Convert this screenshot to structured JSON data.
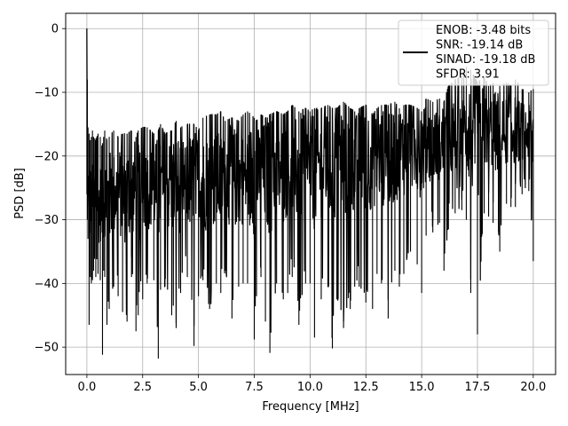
{
  "chart_data": {
    "type": "line",
    "title": "",
    "xlabel": "Frequency [MHz]",
    "ylabel": "PSD [dB]",
    "xlim": [
      -0.95,
      21.0
    ],
    "ylim": [
      -54.3,
      2.4
    ],
    "grid": true,
    "legend_position": "top-right",
    "xticks": [
      0.0,
      2.5,
      5.0,
      7.5,
      10.0,
      12.5,
      15.0,
      17.5,
      20.0
    ],
    "xtick_labels": [
      "0.0",
      "2.5",
      "5.0",
      "7.5",
      "10.0",
      "12.5",
      "15.0",
      "17.5",
      "20.0"
    ],
    "yticks": [
      0,
      -10,
      -20,
      -30,
      -40,
      -50
    ],
    "ytick_labels": [
      "0",
      "−10",
      "−20",
      "−30",
      "−40",
      "−50"
    ],
    "series": [
      {
        "name": "ENOB: -3.48 bits\nSNR: -19.14 dB\nSINAD: -19.18 dB\nSFDR: 3.91",
        "color": "#000000",
        "x": [
          0.0,
          0.02,
          0.05,
          0.1,
          0.15,
          0.2,
          0.25,
          0.3,
          0.4,
          0.5,
          0.6,
          0.7,
          0.75,
          0.8,
          0.9,
          1.0,
          1.2,
          1.4,
          1.6,
          1.8,
          2.0,
          2.2,
          2.3,
          2.5,
          2.7,
          3.0,
          3.2,
          3.3,
          3.5,
          3.8,
          4.0,
          4.2,
          4.5,
          4.8,
          5.0,
          5.2,
          5.5,
          5.8,
          6.0,
          6.2,
          6.5,
          6.8,
          7.0,
          7.2,
          7.5,
          7.6,
          7.8,
          8.0,
          8.2,
          8.5,
          8.8,
          9.0,
          9.2,
          9.5,
          9.8,
          10.0,
          10.2,
          10.5,
          10.8,
          11.0,
          11.2,
          11.5,
          11.8,
          12.0,
          12.2,
          12.5,
          12.8,
          13.0,
          13.2,
          13.5,
          13.8,
          14.0,
          14.2,
          14.5,
          14.8,
          15.0,
          15.2,
          15.5,
          15.8,
          16.0,
          16.2,
          16.5,
          16.8,
          17.0,
          17.2,
          17.5,
          17.8,
          18.0,
          18.2,
          18.5,
          18.8,
          19.0,
          19.2,
          19.5,
          19.8,
          20.0
        ],
        "y_upper": [
          0.0,
          -8.0,
          -15.5,
          -16.5,
          -17.5,
          -17.0,
          -16.0,
          -17.0,
          -17.5,
          -16.5,
          -17.0,
          -18.0,
          -17.0,
          -16.0,
          -17.5,
          -17.0,
          -16.0,
          -17.0,
          -16.5,
          -16.5,
          -16.0,
          -17.0,
          -16.0,
          -15.5,
          -15.5,
          -16.5,
          -16.0,
          -15.0,
          -16.5,
          -16.0,
          -14.5,
          -15.5,
          -15.0,
          -15.0,
          -16.0,
          -14.0,
          -13.5,
          -13.5,
          -13.0,
          -14.5,
          -14.0,
          -14.5,
          -13.5,
          -13.0,
          -14.0,
          -14.5,
          -13.5,
          -14.0,
          -13.5,
          -13.0,
          -13.5,
          -13.0,
          -12.0,
          -13.0,
          -12.5,
          -13.0,
          -12.5,
          -12.5,
          -12.0,
          -12.5,
          -12.5,
          -11.5,
          -12.5,
          -13.0,
          -12.5,
          -12.0,
          -13.5,
          -12.5,
          -12.0,
          -12.0,
          -11.5,
          -12.5,
          -12.0,
          -12.0,
          -12.5,
          -13.0,
          -11.0,
          -11.5,
          -11.0,
          -11.5,
          -9.0,
          -8.0,
          -7.5,
          -6.0,
          -6.5,
          -8.5,
          -7.5,
          -9.0,
          -8.5,
          -9.0,
          -8.5,
          -9.0,
          -8.0,
          -9.5,
          -10.0,
          -9.5
        ],
        "y_lower": [
          -26.0,
          -30.0,
          -33.0,
          -46.5,
          -39.0,
          -40.0,
          -39.5,
          -38.0,
          -39.0,
          -38.5,
          -39.5,
          -51.2,
          -38.0,
          -39.0,
          -46.5,
          -44.0,
          -40.5,
          -42.0,
          -44.5,
          -46.0,
          -39.0,
          -47.5,
          -45.0,
          -42.5,
          -40.0,
          -39.5,
          -51.8,
          -41.0,
          -40.5,
          -45.0,
          -47.0,
          -41.5,
          -39.0,
          -49.8,
          -42.0,
          -39.5,
          -44.0,
          -40.0,
          -41.5,
          -38.0,
          -45.5,
          -40.5,
          -40.0,
          -40.0,
          -48.8,
          -42.0,
          -39.0,
          -46.0,
          -50.9,
          -40.0,
          -42.5,
          -41.5,
          -39.0,
          -46.5,
          -40.0,
          -40.0,
          -48.5,
          -42.5,
          -40.5,
          -50.2,
          -42.5,
          -47.0,
          -44.0,
          -40.5,
          -40.5,
          -43.0,
          -44.0,
          -38.5,
          -40.0,
          -45.5,
          -38.0,
          -40.5,
          -38.5,
          -35.0,
          -37.0,
          -41.5,
          -32.5,
          -32.0,
          -30.5,
          -38.0,
          -31.5,
          -29.0,
          -28.5,
          -30.0,
          -41.5,
          -48.0,
          -29.0,
          -29.5,
          -30.5,
          -35.0,
          -27.5,
          -28.0,
          -28.0,
          -26.0,
          -25.5,
          -36.5
        ],
        "y_mid": [
          -2.0,
          -20.0,
          -26.0,
          -28.0,
          -27.0,
          -28.0,
          -27.5,
          -27.0,
          -26.5,
          -28.0,
          -27.0,
          -26.5,
          -27.0,
          -26.0,
          -27.0,
          -26.5,
          -26.0,
          -25.5,
          -26.0,
          -26.0,
          -25.5,
          -25.0,
          -26.0,
          -25.5,
          -25.0,
          -25.0,
          -26.0,
          -25.5,
          -25.0,
          -24.5,
          -25.0,
          -24.5,
          -24.0,
          -24.5,
          -24.0,
          -24.0,
          -24.5,
          -23.5,
          -24.0,
          -23.5,
          -23.0,
          -24.0,
          -23.5,
          -23.0,
          -23.5,
          -23.0,
          -22.5,
          -23.0,
          -22.5,
          -22.5,
          -23.0,
          -22.0,
          -22.5,
          -22.0,
          -21.5,
          -22.0,
          -22.0,
          -21.5,
          -21.0,
          -21.5,
          -21.0,
          -20.5,
          -21.0,
          -21.0,
          -20.5,
          -20.5,
          -20.0,
          -20.5,
          -20.0,
          -19.5,
          -20.0,
          -19.5,
          -19.0,
          -19.5,
          -19.0,
          -19.0,
          -18.5,
          -18.0,
          -18.5,
          -18.0,
          -17.5,
          -17.0,
          -16.5,
          -16.0,
          -16.0,
          -16.5,
          -16.0,
          -16.5,
          -16.0,
          -16.5,
          -16.0,
          -15.5,
          -16.0,
          -16.0,
          -16.5,
          -17.0
        ]
      }
    ]
  }
}
